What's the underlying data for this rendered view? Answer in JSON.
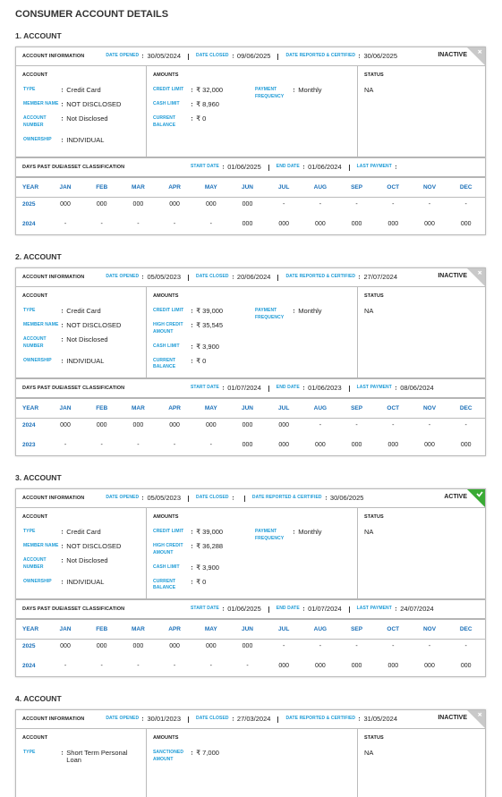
{
  "header": {
    "title": "CONSUMER ACCOUNT DETAILS"
  },
  "labels": {
    "account_information": "ACCOUNT INFORMATION",
    "date_opened": "DATE OPENED",
    "date_closed": "DATE CLOSED",
    "date_reported": "DATE REPORTED & CERTIFIED",
    "account": "ACCOUNT",
    "amounts": "AMOUNTS",
    "status": "STATUS",
    "dpd": "DAYS PAST DUE/ASSET CLASSIFICATION",
    "start_date": "START DATE",
    "end_date": "END DATE",
    "last_payment": "LAST PAYMENT",
    "year": "YEAR",
    "months": [
      "JAN",
      "FEB",
      "MAR",
      "APR",
      "MAY",
      "JUN",
      "JUL",
      "AUG",
      "SEP",
      "OCT",
      "NOV",
      "DEC"
    ]
  },
  "accounts": [
    {
      "heading": "1. ACCOUNT",
      "date_opened": "30/05/2024",
      "date_closed": "09/06/2025",
      "date_reported": "30/06/2025",
      "state": "INACTIVE",
      "badge_color": "#c9c9c9",
      "badge_icon": "cross",
      "account_fields": [
        {
          "label": "TYPE",
          "value": "Credit Card"
        },
        {
          "label": "MEMBER NAME",
          "value": "NOT DISCLOSED"
        },
        {
          "label": "ACCOUNT NUMBER",
          "value": "Not Disclosed"
        },
        {
          "label": "OWNERSHIP",
          "value": "INDIVIDUAL"
        }
      ],
      "amount_fields": [
        {
          "label": "CREDIT LIMIT",
          "value": "₹ 32,000"
        },
        {
          "label": "CASH LIMIT",
          "value": "₹ 8,960"
        },
        {
          "label": "CURRENT BALANCE",
          "value": "₹ 0"
        }
      ],
      "other_fields": [
        {
          "label": "PAYMENT FREQUENCY",
          "value": "Monthly"
        }
      ],
      "status": "NA",
      "dpd": {
        "start_date": "01/06/2025",
        "end_date": "01/06/2024"
      },
      "history": [
        {
          "year": "2025",
          "months": [
            "000",
            "000",
            "000",
            "000",
            "000",
            "000",
            "-",
            "-",
            "-",
            "-",
            "-",
            "-"
          ]
        },
        {
          "year": "2024",
          "months": [
            "-",
            "-",
            "-",
            "-",
            "-",
            "000",
            "000",
            "000",
            "000",
            "000",
            "000",
            "000"
          ]
        }
      ]
    },
    {
      "heading": "2. ACCOUNT",
      "date_opened": "05/05/2023",
      "date_closed": "20/06/2024",
      "date_reported": "27/07/2024",
      "state": "INACTIVE",
      "badge_color": "#c9c9c9",
      "badge_icon": "cross",
      "account_fields": [
        {
          "label": "TYPE",
          "value": "Credit Card"
        },
        {
          "label": "MEMBER NAME",
          "value": "NOT DISCLOSED"
        },
        {
          "label": "ACCOUNT NUMBER",
          "value": "Not Disclosed"
        },
        {
          "label": "OWNERSHIP",
          "value": "INDIVIDUAL"
        }
      ],
      "amount_fields": [
        {
          "label": "CREDIT LIMIT",
          "value": "₹ 39,000"
        },
        {
          "label": "HIGH CREDIT AMOUNT",
          "value": "₹ 35,545"
        },
        {
          "label": "CASH LIMIT",
          "value": "₹ 3,900"
        },
        {
          "label": "CURRENT BALANCE",
          "value": "₹ 0"
        }
      ],
      "other_fields": [
        {
          "label": "PAYMENT FREQUENCY",
          "value": "Monthly"
        }
      ],
      "status": "NA",
      "dpd": {
        "start_date": "01/07/2024",
        "end_date": "01/06/2023",
        "last_payment": "08/06/2024"
      },
      "history": [
        {
          "year": "2024",
          "months": [
            "000",
            "000",
            "000",
            "000",
            "000",
            "000",
            "000",
            "-",
            "-",
            "-",
            "-",
            "-"
          ]
        },
        {
          "year": "2023",
          "months": [
            "-",
            "-",
            "-",
            "-",
            "-",
            "000",
            "000",
            "000",
            "000",
            "000",
            "000",
            "000"
          ]
        }
      ]
    },
    {
      "heading": "3. ACCOUNT",
      "date_opened": "05/05/2023",
      "date_reported": "30/06/2025",
      "state": "ACTIVE",
      "badge_color": "#3aaa35",
      "badge_icon": "check",
      "account_fields": [
        {
          "label": "TYPE",
          "value": "Credit Card"
        },
        {
          "label": "MEMBER NAME",
          "value": "NOT DISCLOSED"
        },
        {
          "label": "ACCOUNT NUMBER",
          "value": "Not Disclosed"
        },
        {
          "label": "OWNERSHIP",
          "value": "INDIVIDUAL"
        }
      ],
      "amount_fields": [
        {
          "label": "CREDIT LIMIT",
          "value": "₹ 39,000"
        },
        {
          "label": "HIGH CREDIT AMOUNT",
          "value": "₹ 36,288"
        },
        {
          "label": "CASH LIMIT",
          "value": "₹ 3,900"
        },
        {
          "label": "CURRENT BALANCE",
          "value": "₹ 0"
        }
      ],
      "other_fields": [
        {
          "label": "PAYMENT FREQUENCY",
          "value": "Monthly"
        }
      ],
      "status": "NA",
      "dpd": {
        "start_date": "01/06/2025",
        "end_date": "01/07/2024",
        "last_payment": "24/07/2024"
      },
      "history": [
        {
          "year": "2025",
          "months": [
            "000",
            "000",
            "000",
            "000",
            "000",
            "000",
            "-",
            "-",
            "-",
            "-",
            "-",
            "-"
          ]
        },
        {
          "year": "2024",
          "months": [
            "-",
            "-",
            "-",
            "-",
            "-",
            "-",
            "000",
            "000",
            "000",
            "000",
            "000",
            "000"
          ]
        }
      ]
    },
    {
      "heading": "4. ACCOUNT",
      "date_opened": "30/01/2023",
      "date_closed": "27/03/2024",
      "date_reported": "31/05/2024",
      "state": "INACTIVE",
      "badge_color": "#c9c9c9",
      "badge_icon": "cross",
      "account_fields": [
        {
          "label": "TYPE",
          "value": "Short Term Personal Loan"
        }
      ],
      "amount_fields": [
        {
          "label": "SANCTIONED AMOUNT",
          "value": "₹ 7,000"
        }
      ],
      "status": "NA"
    }
  ]
}
